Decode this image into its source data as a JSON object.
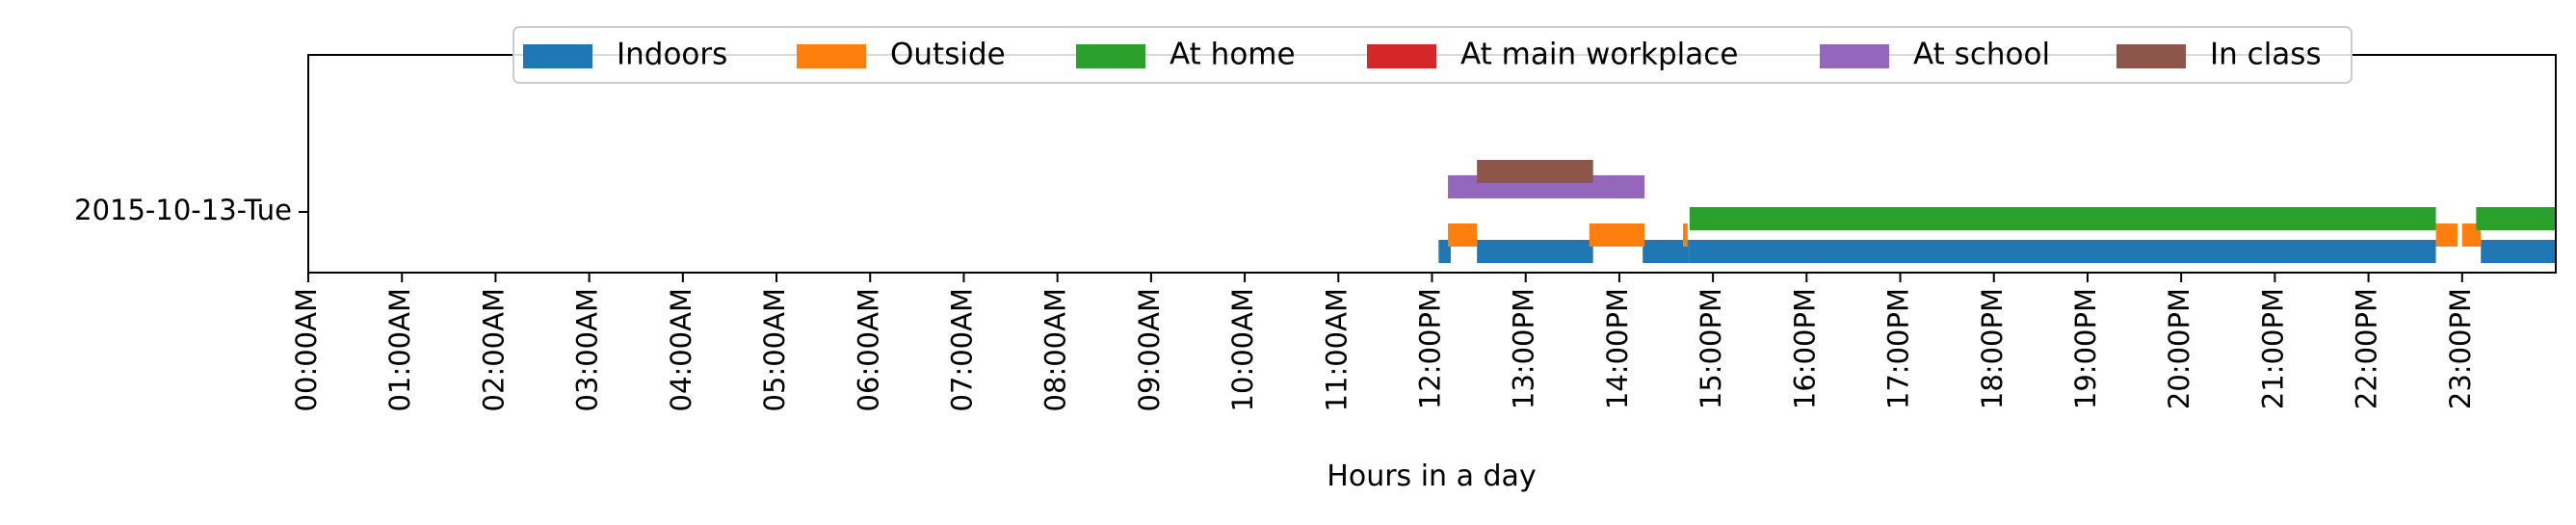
{
  "chart_data": {
    "type": "timeline",
    "xlabel": "Hours in a day",
    "x_ticks": [
      "00:00AM",
      "01:00AM",
      "02:00AM",
      "03:00AM",
      "04:00AM",
      "05:00AM",
      "06:00AM",
      "07:00AM",
      "08:00AM",
      "09:00AM",
      "10:00AM",
      "11:00AM",
      "12:00PM",
      "13:00PM",
      "14:00PM",
      "15:00PM",
      "16:00PM",
      "17:00PM",
      "18:00PM",
      "19:00PM",
      "20:00PM",
      "21:00PM",
      "22:00PM",
      "23:00PM"
    ],
    "xlim": [
      0,
      24
    ],
    "y_ticks": [
      "2015-10-13-Tue"
    ],
    "legend_position": "top-center",
    "grid": false,
    "series": [
      {
        "name": "Indoors",
        "color": "#1f77b4",
        "intervals": [
          [
            12.07,
            12.2
          ],
          [
            12.48,
            13.72
          ],
          [
            14.25,
            14.75
          ],
          [
            14.75,
            22.72
          ],
          [
            23.2,
            24.0
          ]
        ]
      },
      {
        "name": "Outside",
        "color": "#ff7f0e",
        "intervals": [
          [
            12.17,
            12.48
          ],
          [
            13.68,
            14.27
          ],
          [
            14.68,
            14.73
          ],
          [
            22.72,
            22.95
          ],
          [
            23.0,
            23.2
          ]
        ]
      },
      {
        "name": "At home",
        "color": "#2ca02c",
        "intervals": [
          [
            14.75,
            22.72
          ],
          [
            23.15,
            24.0
          ]
        ]
      },
      {
        "name": "At main workplace",
        "color": "#d62728",
        "intervals": []
      },
      {
        "name": "At school",
        "color": "#9467bd",
        "intervals": [
          [
            12.17,
            14.27
          ]
        ]
      },
      {
        "name": "In class",
        "color": "#8c564b",
        "intervals": [
          [
            12.48,
            13.72
          ]
        ]
      }
    ]
  }
}
